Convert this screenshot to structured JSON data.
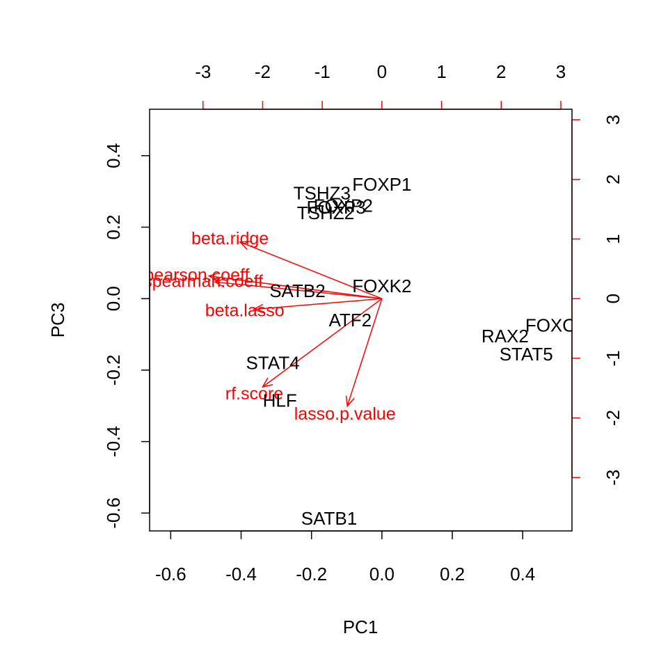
{
  "chart_data": {
    "type": "scatter",
    "subtype": "biplot",
    "title": "",
    "xlabel": "PC1",
    "ylabel": "PC3",
    "xlim": [
      -0.66,
      0.54
    ],
    "ylim": [
      -0.65,
      0.53
    ],
    "x_ticks": [
      "-0.6",
      "-0.4",
      "-0.2",
      "0.0",
      "0.2",
      "0.4"
    ],
    "y_ticks": [
      "-0.6",
      "-0.4",
      "-0.2",
      "0.0",
      "0.2",
      "0.4"
    ],
    "top_axis_ticks": [
      "-3",
      "-2",
      "-1",
      "0",
      "1",
      "2",
      "3"
    ],
    "right_axis_ticks": [
      "-3",
      "-2",
      "-1",
      "0",
      "1",
      "2",
      "3"
    ],
    "points": [
      {
        "label": "FOXP1",
        "x": 0.0,
        "y": 0.32
      },
      {
        "label": "TSHZ3",
        "x": -0.17,
        "y": 0.295
      },
      {
        "label": "FOXP2",
        "x": -0.11,
        "y": 0.26
      },
      {
        "label": "FOXP3",
        "x": -0.13,
        "y": 0.255
      },
      {
        "label": "TSHZ2",
        "x": -0.16,
        "y": 0.24
      },
      {
        "label": "FOXK2",
        "x": 0.0,
        "y": 0.035
      },
      {
        "label": "SATB2",
        "x": -0.24,
        "y": 0.022
      },
      {
        "label": "ATF2",
        "x": -0.09,
        "y": -0.06
      },
      {
        "label": "FOXO",
        "x": 0.48,
        "y": -0.075
      },
      {
        "label": "RAX2",
        "x": 0.35,
        "y": -0.105
      },
      {
        "label": "STAT5",
        "x": 0.41,
        "y": -0.155
      },
      {
        "label": "STAT4",
        "x": -0.31,
        "y": -0.18
      },
      {
        "label": "HLF",
        "x": -0.29,
        "y": -0.285
      },
      {
        "label": "SATB1",
        "x": -0.15,
        "y": -0.615
      }
    ],
    "loadings": [
      {
        "label": "beta.ridge",
        "x": -2.38,
        "y": 0.95
      },
      {
        "label": "pearson.coeff",
        "x": -2.9,
        "y": 0.38
      },
      {
        "label": "spearman.coeff",
        "x": -2.8,
        "y": 0.28
      },
      {
        "label": "beta.lasso",
        "x": -2.15,
        "y": -0.18
      },
      {
        "label": "rf.score",
        "x": -2.0,
        "y": -1.48
      },
      {
        "label": "lasso.p.value",
        "x": -0.58,
        "y": -1.8
      }
    ],
    "colors": {
      "points": "#000000",
      "loadings": "#ff0000"
    }
  }
}
